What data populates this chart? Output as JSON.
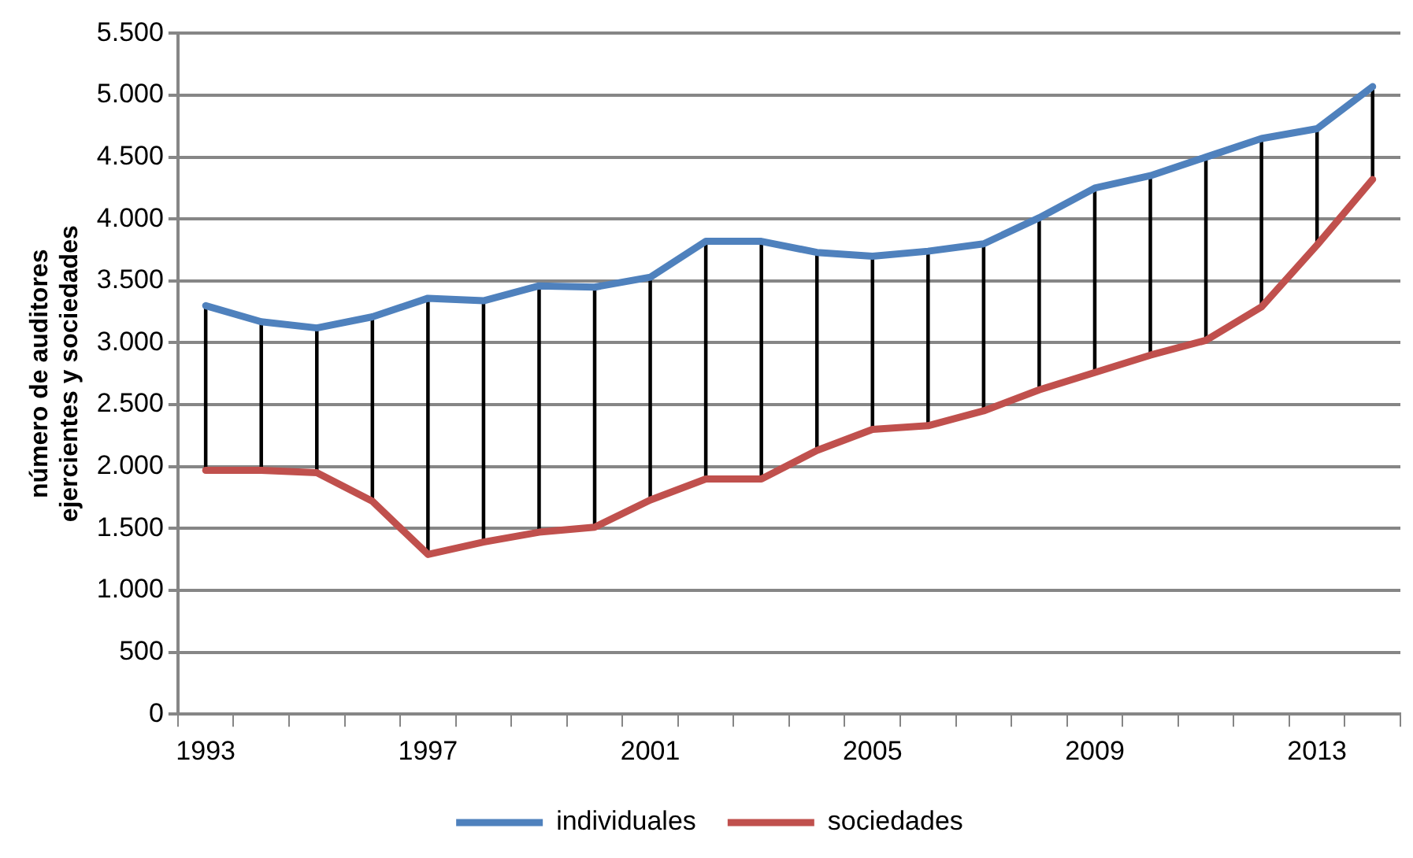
{
  "chart_data": {
    "type": "line",
    "ylabel": "número de auditores ejercientes y sociedades",
    "categories": [
      "1993",
      null,
      null,
      null,
      "1997",
      null,
      null,
      null,
      "2001",
      null,
      null,
      null,
      "2005",
      null,
      null,
      null,
      "2009",
      null,
      null,
      null,
      "2013",
      null
    ],
    "series": [
      {
        "name": "individuales",
        "color": "#4f81bd",
        "values": [
          3300,
          3170,
          3120,
          3210,
          3360,
          3340,
          3460,
          3450,
          3530,
          3820,
          3820,
          3730,
          3700,
          3740,
          3800,
          4010,
          4250,
          4350,
          4500,
          4650,
          4730,
          5070
        ]
      },
      {
        "name": "sociedades",
        "color": "#c0504d",
        "values": [
          1970,
          1970,
          1950,
          1720,
          1290,
          1390,
          1470,
          1510,
          1730,
          1900,
          1900,
          2130,
          2300,
          2330,
          2450,
          2620,
          2760,
          2900,
          3020,
          3290,
          3790,
          4320
        ]
      },
      {
        "type": "bar",
        "color": "#000000",
        "base": [
          1970,
          1970,
          1950,
          1720,
          1290,
          1390,
          1470,
          1510,
          1730,
          1900,
          1900,
          2130,
          2300,
          2330,
          2450,
          2620,
          2760,
          2900,
          3020,
          3290,
          3790,
          4320
        ],
        "values": [
          1330,
          1200,
          1170,
          1490,
          2070,
          1950,
          1990,
          1940,
          1800,
          1920,
          1920,
          1600,
          1400,
          1410,
          1350,
          1390,
          1490,
          1450,
          1480,
          1360,
          940,
          750
        ]
      }
    ],
    "ylim": [
      0,
      5500
    ],
    "yticks": [
      0,
      500,
      {
        "value": 1000,
        "label": "1.000"
      },
      {
        "value": 1500,
        "label": "1.500"
      },
      {
        "value": 2000,
        "label": "2.000"
      },
      {
        "value": 2500,
        "label": "2.500"
      },
      {
        "value": 3000,
        "label": "3.000"
      },
      {
        "value": 3500,
        "label": "3.500"
      },
      {
        "value": 4000,
        "label": "4.000"
      },
      {
        "value": 4500,
        "label": "4.500"
      },
      {
        "value": 5000,
        "label": "5.000"
      },
      {
        "value": 5500,
        "label": "5.500"
      }
    ],
    "grid": "y",
    "legend": "bottom",
    "marker": "none",
    "line_style": "solid"
  }
}
